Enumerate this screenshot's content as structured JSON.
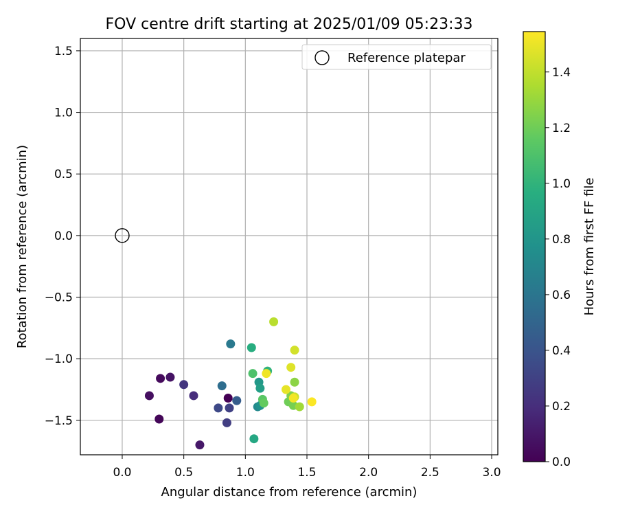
{
  "chart_data": {
    "type": "scatter",
    "title": "FOV centre drift starting at 2025/01/09 05:23:33",
    "xlabel": "Angular distance from reference (arcmin)",
    "ylabel": "Rotation from reference (arcmin)",
    "xlim": [
      -0.34,
      3.05
    ],
    "ylim": [
      -1.78,
      1.6
    ],
    "xticks": [
      0.0,
      0.5,
      1.0,
      1.5,
      2.0,
      2.5,
      3.0
    ],
    "xtick_labels": [
      "0.0",
      "0.5",
      "1.0",
      "1.5",
      "2.0",
      "2.5",
      "3.0"
    ],
    "yticks": [
      -1.5,
      -1.0,
      -0.5,
      0.0,
      0.5,
      1.0,
      1.5
    ],
    "ytick_labels": [
      "−1.5",
      "−1.0",
      "−0.5",
      "0.0",
      "0.5",
      "1.0",
      "1.5"
    ],
    "grid": true,
    "legend": {
      "position": "upper right",
      "entries": [
        "Reference platepar"
      ]
    },
    "reference_point": {
      "x": 0.0,
      "y": 0.0,
      "label": "Reference platepar"
    },
    "colorbar": {
      "label": "Hours from first FF file",
      "colormap": "viridis",
      "range": [
        0.0,
        1.545
      ],
      "ticks": [
        0.0,
        0.2,
        0.4,
        0.6,
        0.8,
        1.0,
        1.2,
        1.4
      ],
      "tick_labels": [
        "0.0",
        "0.2",
        "0.4",
        "0.6",
        "0.8",
        "1.0",
        "1.2",
        "1.4"
      ]
    },
    "points": [
      {
        "x": 0.86,
        "y": -1.32,
        "c": 0.0
      },
      {
        "x": 0.3,
        "y": -1.49,
        "c": 0.02
      },
      {
        "x": 0.31,
        "y": -1.16,
        "c": 0.04
      },
      {
        "x": 0.22,
        "y": -1.3,
        "c": 0.06
      },
      {
        "x": 0.39,
        "y": -1.15,
        "c": 0.08
      },
      {
        "x": 0.63,
        "y": -1.7,
        "c": 0.1
      },
      {
        "x": 0.58,
        "y": -1.3,
        "c": 0.2
      },
      {
        "x": 0.5,
        "y": -1.21,
        "c": 0.24
      },
      {
        "x": 0.85,
        "y": -1.52,
        "c": 0.28
      },
      {
        "x": 0.87,
        "y": -1.4,
        "c": 0.3
      },
      {
        "x": 0.78,
        "y": -1.4,
        "c": 0.34
      },
      {
        "x": 0.93,
        "y": -1.34,
        "c": 0.45
      },
      {
        "x": 0.81,
        "y": -1.22,
        "c": 0.55
      },
      {
        "x": 0.88,
        "y": -0.88,
        "c": 0.62
      },
      {
        "x": 1.1,
        "y": -1.39,
        "c": 0.72
      },
      {
        "x": 1.12,
        "y": -1.38,
        "c": 0.78
      },
      {
        "x": 1.11,
        "y": -1.19,
        "c": 0.82
      },
      {
        "x": 1.12,
        "y": -1.24,
        "c": 0.86
      },
      {
        "x": 1.07,
        "y": -1.65,
        "c": 0.92
      },
      {
        "x": 1.05,
        "y": -0.91,
        "c": 0.96
      },
      {
        "x": 1.18,
        "y": -1.1,
        "c": 1.0
      },
      {
        "x": 1.06,
        "y": -1.12,
        "c": 1.1
      },
      {
        "x": 1.14,
        "y": -1.33,
        "c": 1.14
      },
      {
        "x": 1.15,
        "y": -1.36,
        "c": 1.17
      },
      {
        "x": 1.35,
        "y": -1.35,
        "c": 1.2
      },
      {
        "x": 1.39,
        "y": -1.38,
        "c": 1.22
      },
      {
        "x": 1.37,
        "y": -1.3,
        "c": 1.24
      },
      {
        "x": 1.4,
        "y": -1.19,
        "c": 1.27
      },
      {
        "x": 1.44,
        "y": -1.39,
        "c": 1.32
      },
      {
        "x": 1.23,
        "y": -0.7,
        "c": 1.38
      },
      {
        "x": 1.4,
        "y": -1.31,
        "c": 1.42
      },
      {
        "x": 1.4,
        "y": -0.93,
        "c": 1.44
      },
      {
        "x": 1.37,
        "y": -1.07,
        "c": 1.47
      },
      {
        "x": 1.33,
        "y": -1.25,
        "c": 1.49
      },
      {
        "x": 1.17,
        "y": -1.12,
        "c": 1.51
      },
      {
        "x": 1.39,
        "y": -1.32,
        "c": 1.52
      },
      {
        "x": 1.54,
        "y": -1.35,
        "c": 1.54
      }
    ]
  }
}
